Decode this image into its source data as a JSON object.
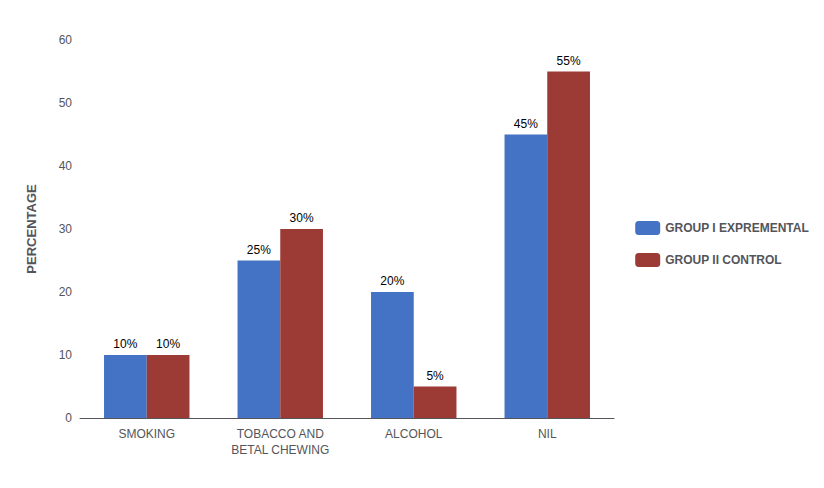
{
  "chart_data": {
    "type": "bar",
    "categories": [
      "SMOKING",
      "TOBACCO AND\nBETAL CHEWING",
      "ALCOHOL",
      "NIL"
    ],
    "series": [
      {
        "name": "GROUP I EXPREMENTAL",
        "color": "#4472C4",
        "values": [
          10,
          25,
          20,
          45
        ],
        "value_labels": [
          "10%",
          "25%",
          "20%",
          "45%"
        ]
      },
      {
        "name": "GROUP II CONTROL",
        "color": "#9C3B35",
        "values": [
          10,
          30,
          5,
          55
        ],
        "value_labels": [
          "10%",
          "30%",
          "5%",
          "55%"
        ]
      }
    ],
    "ylabel": "PERCENTAGE",
    "ylim": [
      0,
      60
    ],
    "yticks": [
      0,
      10,
      20,
      30,
      40,
      50,
      60
    ],
    "grid": false,
    "legend": "right",
    "data_labels": true
  }
}
